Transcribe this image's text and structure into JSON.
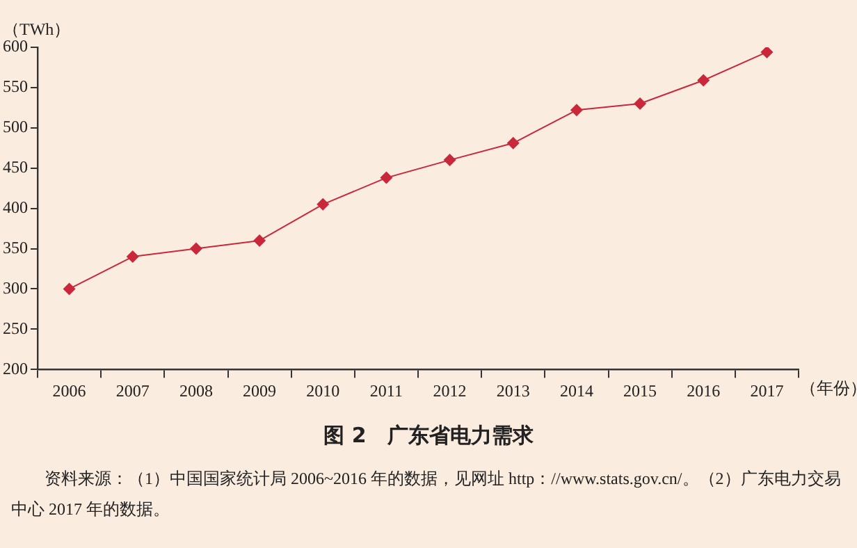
{
  "chart_data": {
    "type": "line",
    "title": "图 2　广东省电力需求",
    "ylabel": "（TWh）",
    "xlabel": "（年份）",
    "annotations": [
      "资料来源：（1）中国国家统计局 2006~2016 年的数据，见网址 http：//www.stats.gov.cn/。（2）广东电力交易中心 2017 年的数据。"
    ],
    "categories": [
      "2006",
      "2007",
      "2008",
      "2009",
      "2010",
      "2011",
      "2012",
      "2013",
      "2014",
      "2015",
      "2016",
      "2017"
    ],
    "series": [
      {
        "color": "#c8283a",
        "values": [
          300,
          340,
          350,
          360,
          405,
          438,
          460,
          481,
          522,
          530,
          559,
          594
        ]
      }
    ],
    "ylim": [
      200,
      600
    ],
    "yticks": [
      200,
      250,
      300,
      350,
      400,
      450,
      500,
      550,
      600
    ],
    "grid": false,
    "legend": false,
    "marker": "diamond",
    "line_style": "solid"
  }
}
